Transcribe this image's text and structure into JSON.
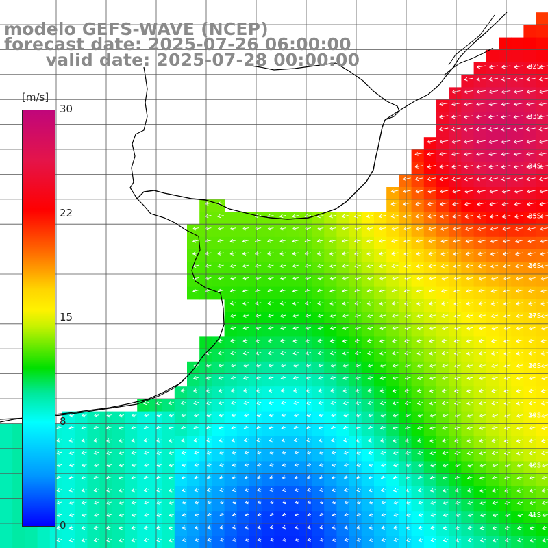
{
  "header": {
    "title": "modelo GEFS-WAVE (NCEP)",
    "forecast": "forecast date: 2025-07-26 06:00:00",
    "valid": "   valid date: 2025-07-28 00:00:00"
  },
  "colorbar": {
    "unit": "[m/s]",
    "ticks": [
      "30",
      "22",
      "15",
      "8",
      "0"
    ],
    "tick_values": [
      30,
      22,
      15,
      8,
      0
    ],
    "min": 0,
    "max": 30,
    "colors": [
      "#c0067b",
      "#ff0000",
      "#ff6a00",
      "#fff200",
      "#00e000",
      "#00ffff",
      "#0000ff"
    ]
  },
  "map": {
    "lat_labels": [
      "32S",
      "33S",
      "34S",
      "35S",
      "36S",
      "37S",
      "38S",
      "39S",
      "40S",
      "41S"
    ],
    "lat_values": [
      -32,
      -33,
      -34,
      -35,
      -36,
      -37,
      -38,
      -39,
      -40,
      -41
    ],
    "lon_range": [
      -61,
      -50
    ],
    "lat_range": [
      -30.5,
      -41.5
    ],
    "field": "wind speed",
    "arrow_color": "#ffffff",
    "land_color": "#ffffff",
    "grid_color": "#555555",
    "coast_color": "#000000",
    "wind_direction": "from southeast"
  }
}
